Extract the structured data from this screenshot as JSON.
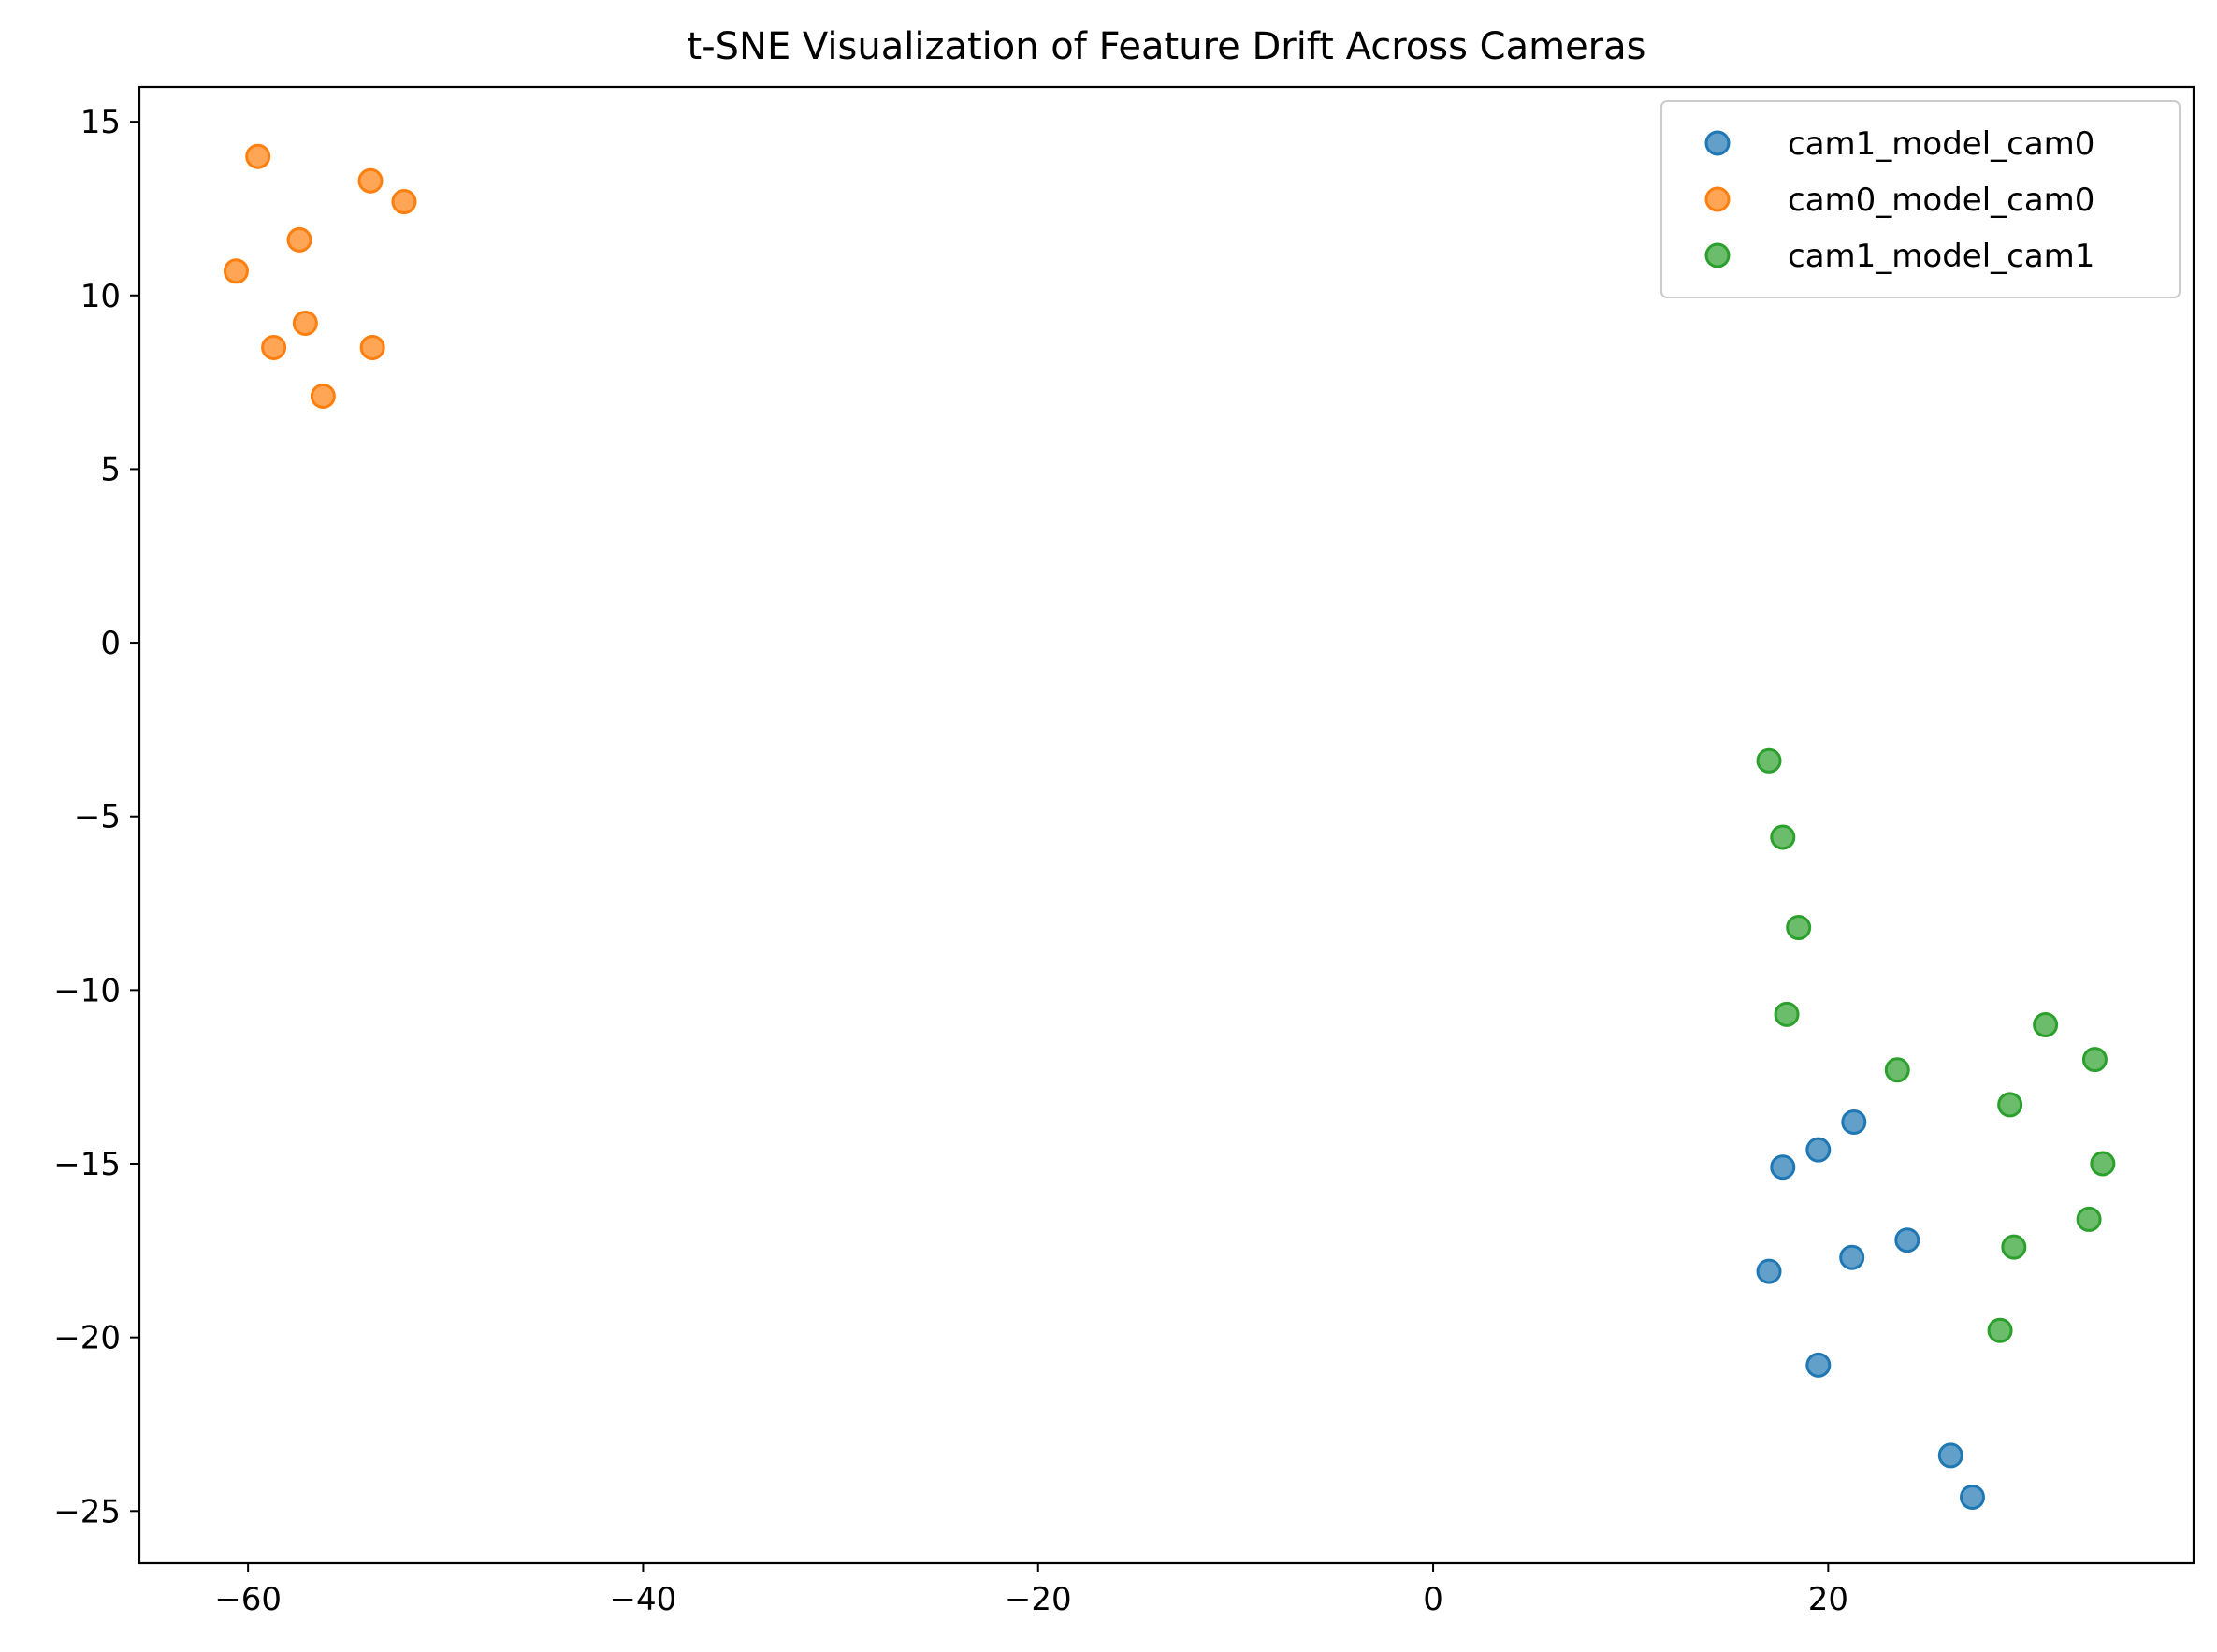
{
  "chart_data": {
    "type": "scatter",
    "title": "t-SNE Visualization of Feature Drift Across Cameras",
    "xlabel": "",
    "ylabel": "",
    "xlim": [
      -65.5,
      38.5
    ],
    "ylim": [
      -26.5,
      16
    ],
    "xticks": [
      -60,
      -40,
      -20,
      0,
      20
    ],
    "yticks": [
      15,
      10,
      5,
      0,
      -5,
      -10,
      -15,
      -20,
      -25
    ],
    "xtick_labels": [
      "−60",
      "−40",
      "−20",
      "0",
      "20"
    ],
    "ytick_labels": [
      "15",
      "10",
      "5",
      "0",
      "−5",
      "−10",
      "−15",
      "−20",
      "−25"
    ],
    "grid": false,
    "legend_position": "top-right",
    "series": [
      {
        "name": "cam1_model_cam0",
        "color": "#1f77b4",
        "points": [
          {
            "x": 21.3,
            "y": -13.8
          },
          {
            "x": 17.7,
            "y": -15.1
          },
          {
            "x": 19.5,
            "y": -14.6
          },
          {
            "x": 24.0,
            "y": -17.2
          },
          {
            "x": 21.2,
            "y": -17.7
          },
          {
            "x": 17.0,
            "y": -18.1
          },
          {
            "x": 19.5,
            "y": -20.8
          },
          {
            "x": 26.2,
            "y": -23.4
          },
          {
            "x": 27.3,
            "y": -24.6
          }
        ]
      },
      {
        "name": "cam0_model_cam0",
        "color": "#ff7f0e",
        "points": [
          {
            "x": -59.5,
            "y": 14.0
          },
          {
            "x": -53.8,
            "y": 13.3
          },
          {
            "x": -52.1,
            "y": 12.7
          },
          {
            "x": -57.4,
            "y": 11.6
          },
          {
            "x": -60.6,
            "y": 10.7
          },
          {
            "x": -57.1,
            "y": 9.2
          },
          {
            "x": -58.7,
            "y": 8.5
          },
          {
            "x": -53.7,
            "y": 8.5
          },
          {
            "x": -56.2,
            "y": 7.1
          }
        ]
      },
      {
        "name": "cam1_model_cam1",
        "color": "#2ca02c",
        "points": [
          {
            "x": 17.0,
            "y": -3.4
          },
          {
            "x": 17.7,
            "y": -5.6
          },
          {
            "x": 18.5,
            "y": -8.2
          },
          {
            "x": 17.9,
            "y": -10.7
          },
          {
            "x": 23.5,
            "y": -12.3
          },
          {
            "x": 31.0,
            "y": -11.0
          },
          {
            "x": 33.5,
            "y": -12.0
          },
          {
            "x": 29.2,
            "y": -13.3
          },
          {
            "x": 33.9,
            "y": -15.0
          },
          {
            "x": 33.2,
            "y": -16.6
          },
          {
            "x": 29.4,
            "y": -17.4
          },
          {
            "x": 28.7,
            "y": -19.8
          }
        ]
      }
    ]
  }
}
